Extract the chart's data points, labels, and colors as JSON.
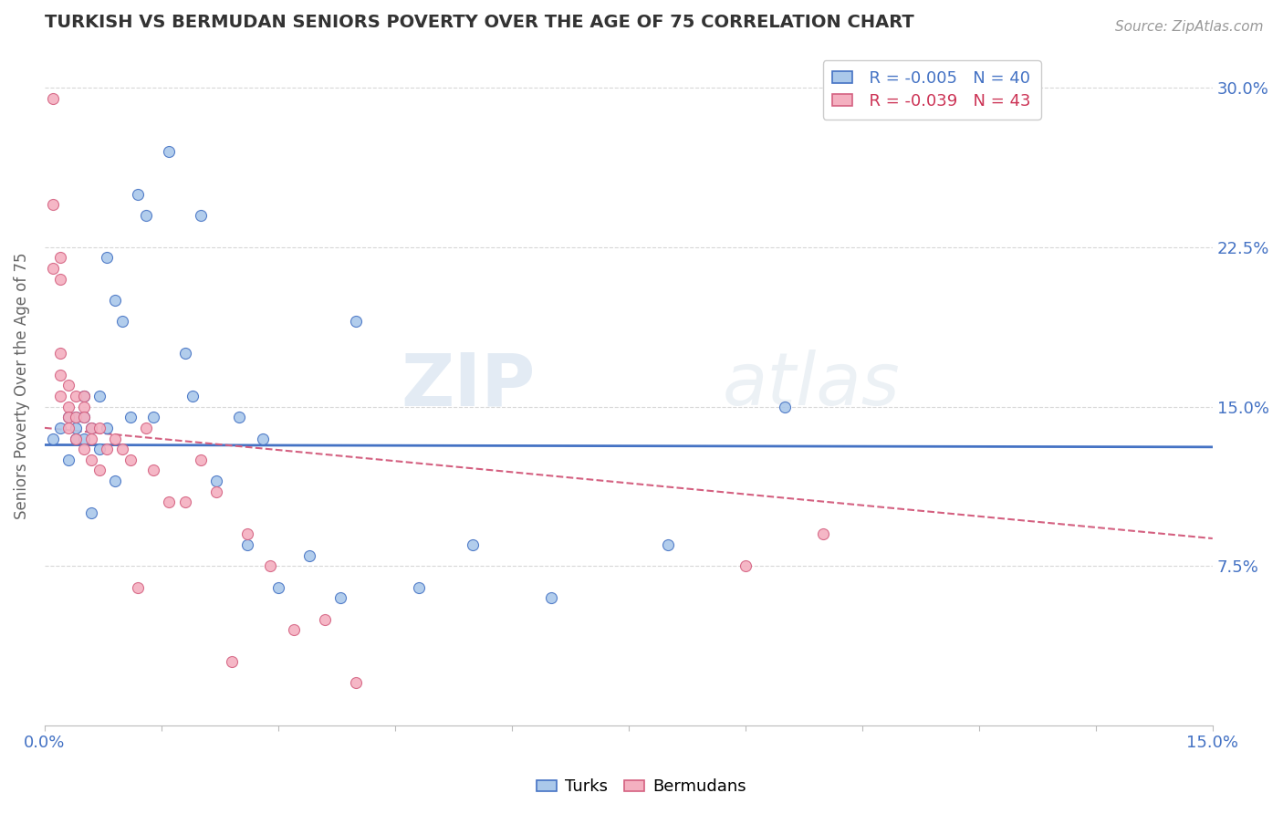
{
  "title": "TURKISH VS BERMUDAN SENIORS POVERTY OVER THE AGE OF 75 CORRELATION CHART",
  "source": "Source: ZipAtlas.com",
  "ylabel": "Seniors Poverty Over the Age of 75",
  "xlim": [
    0.0,
    0.15
  ],
  "ylim": [
    0.0,
    0.32
  ],
  "xtick_labels": [
    "0.0%",
    "15.0%"
  ],
  "ytick_labels": [
    "7.5%",
    "15.0%",
    "22.5%",
    "30.0%"
  ],
  "ytick_vals": [
    0.075,
    0.15,
    0.225,
    0.3
  ],
  "legend_r_turks": "R = -0.005",
  "legend_n_turks": "N = 40",
  "legend_r_bermudans": "R = -0.039",
  "legend_n_bermudans": "N = 43",
  "turks_color": "#aac8ea",
  "bermudans_color": "#f4b0c0",
  "trendline_turks_color": "#4472c4",
  "trendline_bermudans_color": "#d46080",
  "watermark": "ZIPatlas",
  "background_color": "#ffffff",
  "grid_color": "#d8d8d8",
  "turks_x": [
    0.001,
    0.002,
    0.003,
    0.003,
    0.004,
    0.004,
    0.004,
    0.005,
    0.005,
    0.005,
    0.006,
    0.006,
    0.007,
    0.007,
    0.008,
    0.008,
    0.009,
    0.009,
    0.01,
    0.011,
    0.012,
    0.013,
    0.014,
    0.016,
    0.018,
    0.019,
    0.02,
    0.022,
    0.025,
    0.026,
    0.028,
    0.03,
    0.034,
    0.038,
    0.04,
    0.048,
    0.055,
    0.065,
    0.08,
    0.095
  ],
  "turks_y": [
    0.135,
    0.14,
    0.145,
    0.125,
    0.145,
    0.14,
    0.135,
    0.155,
    0.145,
    0.135,
    0.14,
    0.1,
    0.155,
    0.13,
    0.22,
    0.14,
    0.2,
    0.115,
    0.19,
    0.145,
    0.25,
    0.24,
    0.145,
    0.27,
    0.175,
    0.155,
    0.24,
    0.115,
    0.145,
    0.085,
    0.135,
    0.065,
    0.08,
    0.06,
    0.19,
    0.065,
    0.085,
    0.06,
    0.085,
    0.15
  ],
  "bermudans_x": [
    0.001,
    0.001,
    0.001,
    0.002,
    0.002,
    0.002,
    0.002,
    0.002,
    0.003,
    0.003,
    0.003,
    0.003,
    0.004,
    0.004,
    0.004,
    0.005,
    0.005,
    0.005,
    0.005,
    0.006,
    0.006,
    0.006,
    0.007,
    0.007,
    0.008,
    0.009,
    0.01,
    0.011,
    0.012,
    0.013,
    0.014,
    0.016,
    0.018,
    0.02,
    0.022,
    0.024,
    0.026,
    0.029,
    0.032,
    0.036,
    0.04,
    0.09,
    0.1
  ],
  "bermudans_y": [
    0.295,
    0.245,
    0.215,
    0.22,
    0.21,
    0.175,
    0.165,
    0.155,
    0.16,
    0.15,
    0.145,
    0.14,
    0.155,
    0.145,
    0.135,
    0.155,
    0.15,
    0.145,
    0.13,
    0.14,
    0.135,
    0.125,
    0.14,
    0.12,
    0.13,
    0.135,
    0.13,
    0.125,
    0.065,
    0.14,
    0.12,
    0.105,
    0.105,
    0.125,
    0.11,
    0.03,
    0.09,
    0.075,
    0.045,
    0.05,
    0.02,
    0.075,
    0.09
  ],
  "turks_trendline_x": [
    0.0,
    0.15
  ],
  "turks_trendline_y": [
    0.132,
    0.131
  ],
  "bermudans_trendline_x": [
    0.0,
    0.15
  ],
  "bermudans_trendline_y": [
    0.14,
    0.088
  ]
}
